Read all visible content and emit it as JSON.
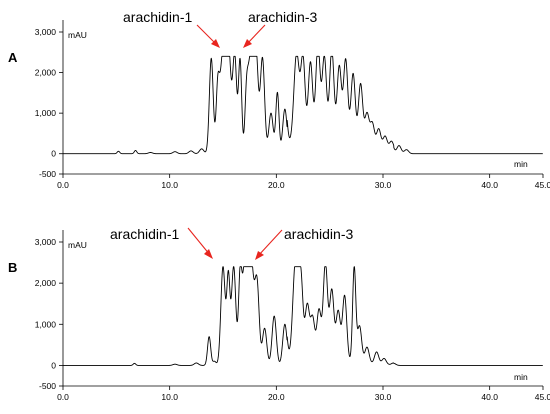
{
  "chart_data": [
    {
      "type": "line",
      "panel_label": "A",
      "y_unit": "mAU",
      "x_unit": "min",
      "xlim": [
        0,
        45
      ],
      "ylim": [
        -500,
        3000
      ],
      "x_ticks": [
        "0.0",
        "10.0",
        "20.0",
        "30.0",
        "40.0",
        "45.0"
      ],
      "x_tick_values": [
        0,
        10,
        20,
        30,
        40,
        45
      ],
      "y_ticks": [
        "3,000",
        "2,000",
        "1,000",
        "0",
        "-500"
      ],
      "y_tick_values": [
        3000,
        2000,
        1000,
        0,
        -500
      ],
      "annotations": [
        {
          "text": "arachidin-1",
          "x": 15.0,
          "y": 2380
        },
        {
          "text": "arachidin-3",
          "x": 17.2,
          "y": 2380
        }
      ],
      "peaks": [
        [
          5.2,
          60,
          0.12
        ],
        [
          6.8,
          80,
          0.12
        ],
        [
          8.2,
          30,
          0.2
        ],
        [
          10.5,
          50,
          0.2
        ],
        [
          12.0,
          70,
          0.2
        ],
        [
          13.0,
          120,
          0.2
        ],
        [
          13.9,
          2350,
          0.18
        ],
        [
          14.5,
          1300,
          0.15
        ],
        [
          15.0,
          2400,
          0.3
        ],
        [
          15.5,
          2400,
          0.25
        ],
        [
          16.1,
          2350,
          0.18
        ],
        [
          16.6,
          2300,
          0.15
        ],
        [
          17.2,
          1200,
          0.15
        ],
        [
          17.6,
          2400,
          0.25
        ],
        [
          18.1,
          2350,
          0.2
        ],
        [
          18.7,
          2350,
          0.2
        ],
        [
          19.5,
          1000,
          0.2
        ],
        [
          20.1,
          1500,
          0.15
        ],
        [
          20.8,
          1100,
          0.2
        ],
        [
          21.9,
          2200,
          0.25
        ],
        [
          22.5,
          2000,
          0.2
        ],
        [
          23.2,
          1900,
          0.2
        ],
        [
          23.9,
          2300,
          0.2
        ],
        [
          24.5,
          2000,
          0.2
        ],
        [
          25.2,
          2200,
          0.2
        ],
        [
          25.9,
          1800,
          0.2
        ],
        [
          26.5,
          2000,
          0.2
        ],
        [
          27.2,
          1700,
          0.2
        ],
        [
          27.9,
          1500,
          0.2
        ],
        [
          28.5,
          800,
          0.2
        ],
        [
          29.0,
          600,
          0.2
        ],
        [
          29.6,
          500,
          0.2
        ],
        [
          30.2,
          350,
          0.2
        ],
        [
          30.8,
          250,
          0.2
        ],
        [
          31.5,
          200,
          0.2
        ],
        [
          32.2,
          100,
          0.2
        ]
      ],
      "hump": {
        "center": 24.5,
        "height": 1300,
        "width": 3.2
      }
    },
    {
      "type": "line",
      "panel_label": "B",
      "y_unit": "mAU",
      "x_unit": "min",
      "xlim": [
        0,
        45
      ],
      "ylim": [
        -500,
        3000
      ],
      "x_ticks": [
        "0.0",
        "10.0",
        "20.0",
        "30.0",
        "40.0",
        "45.0"
      ],
      "x_tick_values": [
        0,
        10,
        20,
        30,
        40,
        45
      ],
      "y_ticks": [
        "3,000",
        "2,000",
        "1,000",
        "0",
        "-500"
      ],
      "y_tick_values": [
        3000,
        2000,
        1000,
        0,
        -500
      ],
      "annotations": [
        {
          "text": "arachidin-1",
          "x": 15.0,
          "y": 2400
        },
        {
          "text": "arachidin-3",
          "x": 17.5,
          "y": 2400
        }
      ],
      "peaks": [
        [
          6.7,
          50,
          0.12
        ],
        [
          10.5,
          30,
          0.2
        ],
        [
          12.5,
          60,
          0.2
        ],
        [
          13.7,
          700,
          0.15
        ],
        [
          14.2,
          100,
          0.15
        ],
        [
          15.0,
          2400,
          0.2
        ],
        [
          15.5,
          2100,
          0.15
        ],
        [
          16.0,
          2400,
          0.2
        ],
        [
          16.6,
          1800,
          0.15
        ],
        [
          17.1,
          2400,
          0.3
        ],
        [
          17.6,
          2400,
          0.3
        ],
        [
          18.2,
          1800,
          0.2
        ],
        [
          18.9,
          900,
          0.2
        ],
        [
          19.8,
          1200,
          0.2
        ],
        [
          20.8,
          1000,
          0.2
        ],
        [
          21.8,
          2400,
          0.25
        ],
        [
          22.3,
          1900,
          0.2
        ],
        [
          22.9,
          1300,
          0.2
        ],
        [
          23.4,
          1000,
          0.2
        ],
        [
          24.0,
          1200,
          0.2
        ],
        [
          24.6,
          2350,
          0.2
        ],
        [
          25.2,
          1700,
          0.2
        ],
        [
          25.8,
          1200,
          0.2
        ],
        [
          26.4,
          1600,
          0.2
        ],
        [
          27.3,
          2300,
          0.15
        ],
        [
          27.8,
          900,
          0.2
        ],
        [
          28.5,
          400,
          0.2
        ],
        [
          29.4,
          300,
          0.2
        ],
        [
          30.1,
          150,
          0.2
        ],
        [
          31.0,
          50,
          0.2
        ]
      ],
      "hump": {
        "center": 23.0,
        "height": 500,
        "width": 3.5
      }
    }
  ]
}
